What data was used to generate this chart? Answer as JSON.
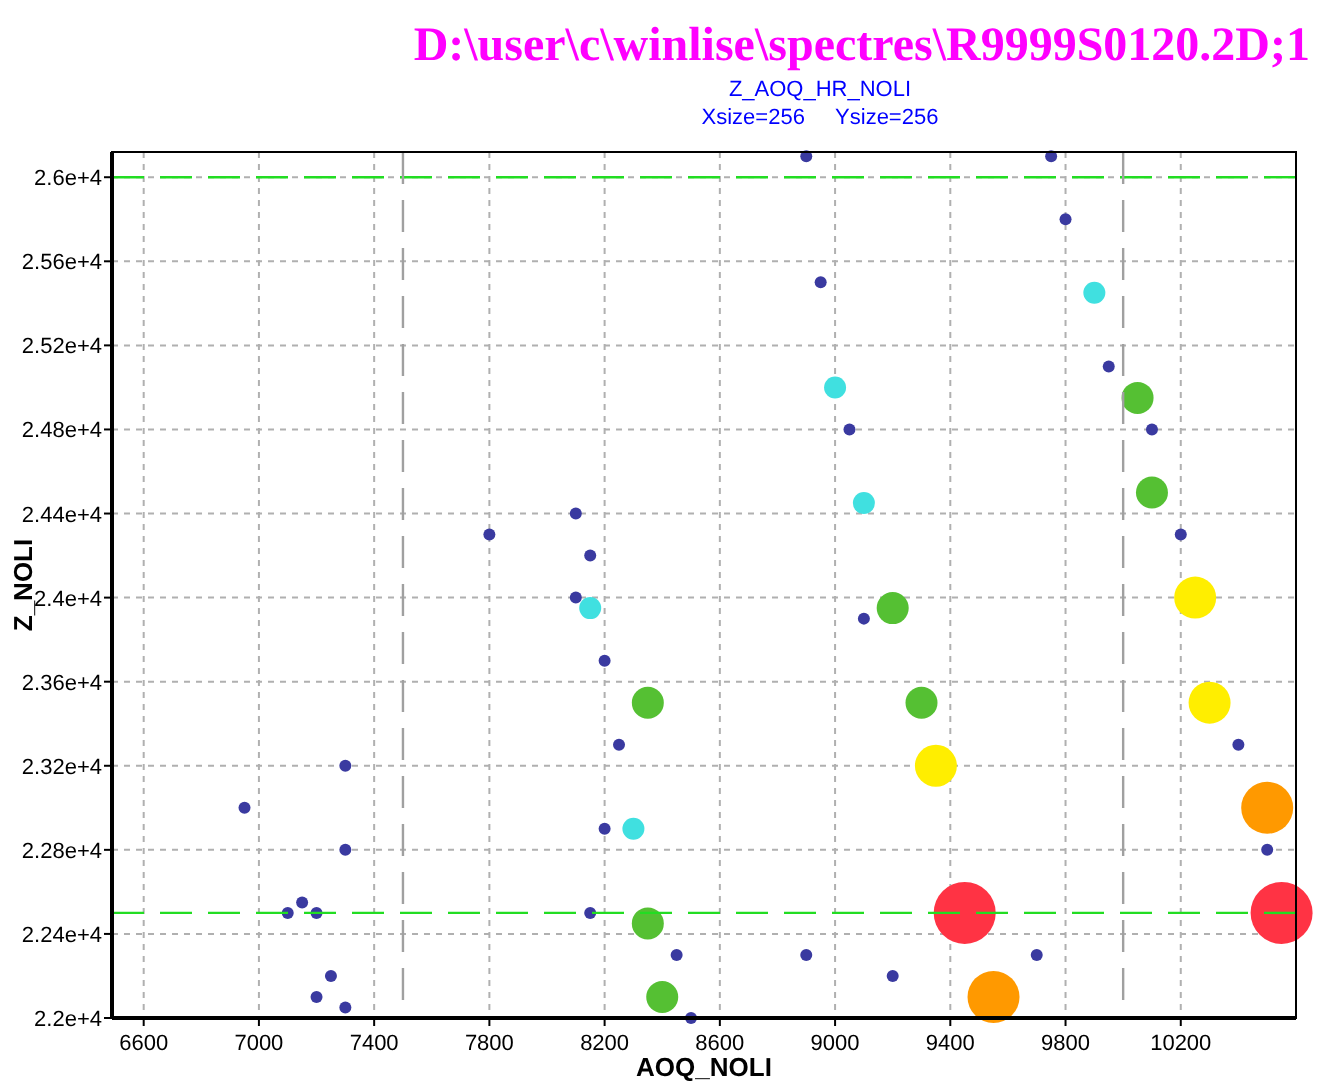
{
  "chart_data": {
    "type": "scatter",
    "title": "D:\\user\\c\\winlise\\spectres\\R9999S0120.2D;1",
    "subtitle": "Z_AOQ_HR_NOLI",
    "annotations": [
      "Xsize=256     Ysize=256"
    ],
    "xlabel": "AOQ_NOLI",
    "ylabel": "Z_NOLI",
    "marker": "circle",
    "grid": true,
    "xlim": [
      6490,
      10600
    ],
    "xticks": [
      6600,
      7000,
      7400,
      7800,
      8200,
      8600,
      9000,
      9400,
      9800,
      10200
    ],
    "ylim": [
      22000,
      26120
    ],
    "yticks": [
      {
        "value": 22000,
        "label": "2.2e+4"
      },
      {
        "value": 22400,
        "label": "2.24e+4"
      },
      {
        "value": 22800,
        "label": "2.28e+4"
      },
      {
        "value": 23200,
        "label": "2.32e+4"
      },
      {
        "value": 23600,
        "label": "2.36e+4"
      },
      {
        "value": 24000,
        "label": "2.4e+4"
      },
      {
        "value": 24400,
        "label": "2.44e+4"
      },
      {
        "value": 24800,
        "label": "2.48e+4"
      },
      {
        "value": 25200,
        "label": "2.52e+4"
      },
      {
        "value": 25600,
        "label": "2.56e+4"
      },
      {
        "value": 26000,
        "label": "2.6e+4"
      }
    ],
    "ref_lines": [
      {
        "axis": "y",
        "value": 26000,
        "color": "#22dd22",
        "line_style": "dashed"
      },
      {
        "axis": "y",
        "value": 22500,
        "color": "#22dd22",
        "line_style": "dashed"
      },
      {
        "axis": "x",
        "value": 7500,
        "color": "#a0a0a0",
        "line_style": "dashed"
      },
      {
        "axis": "x",
        "value": 10000,
        "color": "#a0a0a0",
        "line_style": "dashed"
      }
    ],
    "series": [
      {
        "color": "#3a3aa0",
        "x": [
          7150,
          7200,
          7250,
          7200,
          7300,
          7100,
          7300,
          8150,
          8100,
          8200,
          8250,
          8200,
          8150,
          8450,
          8500,
          8100,
          8900,
          8950,
          9050,
          9100,
          9700,
          9200,
          9750,
          9800,
          9950,
          10100,
          10200,
          10400,
          10500,
          7800,
          7300,
          6950,
          8900
        ],
        "values": [
          22550,
          22500,
          22200,
          22100,
          22050,
          22500,
          22800,
          24200,
          24000,
          23700,
          23300,
          22900,
          22500,
          22300,
          22000,
          24400,
          26100,
          25500,
          24800,
          23900,
          22300,
          22200,
          26100,
          25800,
          25100,
          24800,
          24300,
          23300,
          22800,
          24300,
          23200,
          23000,
          22300
        ]
      },
      {
        "color": "#40e0e0",
        "x": [
          8150,
          8300,
          9000,
          9100,
          9900
        ],
        "values": [
          23950,
          22900,
          25000,
          24450,
          25450
        ]
      },
      {
        "color": "#55c033",
        "x": [
          8350,
          8350,
          8400,
          9200,
          9300,
          10050,
          10100
        ],
        "values": [
          23500,
          22450,
          22100,
          23950,
          23500,
          24950,
          24500
        ]
      },
      {
        "color": "#ffee00",
        "x": [
          9350,
          10250,
          10300
        ],
        "values": [
          23200,
          24000,
          23500
        ]
      },
      {
        "color": "#ff9900",
        "x": [
          9550,
          10500
        ],
        "values": [
          22100,
          23000
        ]
      },
      {
        "color": "#ff3344",
        "x": [
          9450,
          10550
        ],
        "values": [
          22500,
          22500
        ]
      }
    ]
  }
}
